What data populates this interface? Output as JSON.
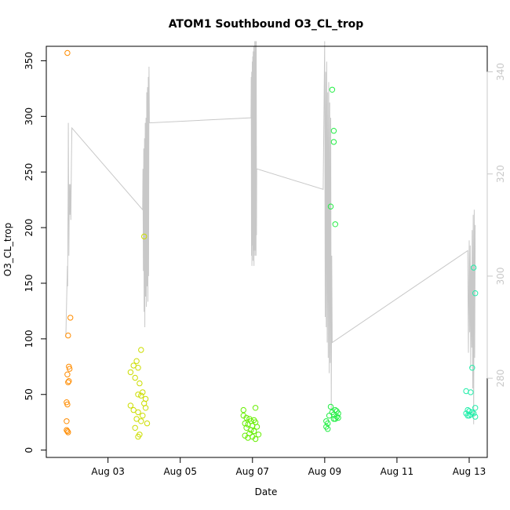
{
  "chart_data": {
    "type": "scatter",
    "title": "ATOM1 Southbound O3_CL_trop",
    "xlabel": "Date",
    "ylabel": "O3_CL_trop",
    "xlim": [
      "2016-08-01T07:00",
      "2016-08-13T12:00"
    ],
    "ylim": [
      -6.6,
      363
    ],
    "y2lim": [
      264.5,
      345
    ],
    "x_ticks": [
      {
        "date": "2016-08-03",
        "label": "Aug 03"
      },
      {
        "date": "2016-08-05",
        "label": "Aug 05"
      },
      {
        "date": "2016-08-07",
        "label": "Aug 07"
      },
      {
        "date": "2016-08-09",
        "label": "Aug 09"
      },
      {
        "date": "2016-08-11",
        "label": "Aug 11"
      },
      {
        "date": "2016-08-13",
        "label": "Aug 13"
      }
    ],
    "y_ticks": [
      0,
      50,
      100,
      150,
      200,
      250,
      300,
      350
    ],
    "y2_ticks": [
      280,
      300,
      320,
      340
    ],
    "series": [
      {
        "color": "#ff8c00",
        "points": [
          [
            "2016-08-01T21:00",
            357
          ],
          [
            "2016-08-01T23:00",
            119
          ],
          [
            "2016-08-01T21:30",
            103
          ],
          [
            "2016-08-01T22:00",
            75
          ],
          [
            "2016-08-01T22:30",
            73
          ],
          [
            "2016-08-01T21:00",
            68
          ],
          [
            "2016-08-01T22:00",
            62
          ],
          [
            "2016-08-01T21:30",
            61
          ],
          [
            "2016-08-01T20:30",
            43
          ],
          [
            "2016-08-01T21:00",
            41
          ],
          [
            "2016-08-01T20:30",
            26
          ],
          [
            "2016-08-01T20:30",
            18
          ],
          [
            "2016-08-01T21:00",
            17
          ],
          [
            "2016-08-01T21:30",
            16
          ]
        ]
      },
      {
        "color": "#ccdd00",
        "points": [
          [
            "2016-08-04T00:00",
            192
          ],
          [
            "2016-08-03T22:00",
            90
          ],
          [
            "2016-08-03T19:00",
            80
          ],
          [
            "2016-08-03T17:00",
            76
          ],
          [
            "2016-08-03T20:00",
            74
          ],
          [
            "2016-08-03T15:00",
            70
          ],
          [
            "2016-08-03T18:00",
            65
          ],
          [
            "2016-08-03T21:00",
            60
          ],
          [
            "2016-08-03T23:00",
            52
          ],
          [
            "2016-08-03T20:00",
            50
          ],
          [
            "2016-08-03T22:00",
            49
          ],
          [
            "2016-08-04T01:00",
            46
          ],
          [
            "2016-08-04T00:00",
            42
          ],
          [
            "2016-08-03T15:00",
            40
          ],
          [
            "2016-08-04T01:00",
            38
          ],
          [
            "2016-08-03T17:00",
            36
          ],
          [
            "2016-08-03T20:00",
            34
          ],
          [
            "2016-08-03T23:00",
            31
          ],
          [
            "2016-08-03T19:00",
            28
          ],
          [
            "2016-08-03T22:00",
            26
          ],
          [
            "2016-08-04T02:00",
            24
          ],
          [
            "2016-08-03T18:00",
            20
          ],
          [
            "2016-08-03T21:00",
            14
          ],
          [
            "2016-08-03T20:00",
            12
          ]
        ]
      },
      {
        "color": "#66ee00",
        "points": [
          [
            "2016-08-06T18:00",
            36
          ],
          [
            "2016-08-07T02:00",
            38
          ],
          [
            "2016-08-06T18:00",
            31
          ],
          [
            "2016-08-06T20:00",
            29
          ],
          [
            "2016-08-06T22:00",
            28
          ],
          [
            "2016-08-07T01:00",
            27
          ],
          [
            "2016-08-06T23:00",
            26
          ],
          [
            "2016-08-07T02:00",
            25
          ],
          [
            "2016-08-06T19:00",
            24
          ],
          [
            "2016-08-06T21:00",
            23
          ],
          [
            "2016-08-07T00:00",
            22
          ],
          [
            "2016-08-07T03:00",
            21
          ],
          [
            "2016-08-06T20:00",
            20
          ],
          [
            "2016-08-06T23:00",
            18
          ],
          [
            "2016-08-07T01:00",
            17
          ],
          [
            "2016-08-06T22:00",
            15
          ],
          [
            "2016-08-07T04:00",
            14
          ],
          [
            "2016-08-06T19:00",
            13
          ],
          [
            "2016-08-07T00:00",
            12
          ],
          [
            "2016-08-06T21:00",
            11
          ],
          [
            "2016-08-07T02:00",
            10
          ]
        ]
      },
      {
        "color": "#22ee44",
        "points": [
          [
            "2016-08-09T05:00",
            324
          ],
          [
            "2016-08-09T06:00",
            287
          ],
          [
            "2016-08-09T06:00",
            277
          ],
          [
            "2016-08-09T04:00",
            219
          ],
          [
            "2016-08-09T07:00",
            203
          ],
          [
            "2016-08-09T04:00",
            39
          ],
          [
            "2016-08-09T07:00",
            36
          ],
          [
            "2016-08-09T08:00",
            35
          ],
          [
            "2016-08-09T05:00",
            34
          ],
          [
            "2016-08-09T09:00",
            33
          ],
          [
            "2016-08-09T06:00",
            32
          ],
          [
            "2016-08-09T03:00",
            31
          ],
          [
            "2016-08-09T08:00",
            30
          ],
          [
            "2016-08-09T09:00",
            29
          ],
          [
            "2016-08-09T06:00",
            28
          ],
          [
            "2016-08-09T07:00",
            28
          ],
          [
            "2016-08-09T01:00",
            26
          ],
          [
            "2016-08-09T02:00",
            24
          ],
          [
            "2016-08-09T01:00",
            21
          ],
          [
            "2016-08-09T02:00",
            19
          ]
        ]
      },
      {
        "color": "#22eeaa",
        "points": [
          [
            "2016-08-13T03:00",
            164
          ],
          [
            "2016-08-13T04:00",
            141
          ],
          [
            "2016-08-13T02:00",
            74
          ],
          [
            "2016-08-12T22:00",
            53
          ],
          [
            "2016-08-13T01:00",
            52
          ],
          [
            "2016-08-13T04:00",
            38
          ],
          [
            "2016-08-12T23:00",
            36
          ],
          [
            "2016-08-13T00:00",
            35
          ],
          [
            "2016-08-13T02:00",
            34
          ],
          [
            "2016-08-12T22:00",
            33
          ],
          [
            "2016-08-13T03:00",
            33
          ],
          [
            "2016-08-13T01:00",
            32
          ],
          [
            "2016-08-12T23:00",
            31
          ],
          [
            "2016-08-13T00:00",
            31
          ],
          [
            "2016-08-13T04:00",
            30
          ]
        ]
      }
    ],
    "secondary_line": {
      "color": "#c8c8c8",
      "axis": "right",
      "points": [
        [
          "2016-08-01T20:00",
          288
        ],
        [
          "2016-08-01T20:30",
          295
        ],
        [
          "2016-08-01T21:00",
          302
        ],
        [
          "2016-08-01T21:10",
          298
        ],
        [
          "2016-08-01T21:20",
          308
        ],
        [
          "2016-08-01T21:30",
          316
        ],
        [
          "2016-08-01T21:40",
          330
        ],
        [
          "2016-08-01T21:50",
          315
        ],
        [
          "2016-08-01T22:00",
          304
        ],
        [
          "2016-08-01T22:20",
          318
        ],
        [
          "2016-08-01T22:40",
          312
        ],
        [
          "2016-08-01T23:00",
          318
        ],
        [
          "2016-08-01T23:20",
          311
        ],
        [
          "2016-08-01T23:40",
          322
        ],
        [
          "2016-08-02T00:00",
          329
        ],
        [
          "2016-08-03T23:00",
          313
        ],
        [
          "2016-08-03T23:15",
          321
        ],
        [
          "2016-08-03T23:30",
          301
        ],
        [
          "2016-08-03T23:45",
          325
        ],
        [
          "2016-08-04T00:00",
          293
        ],
        [
          "2016-08-04T00:15",
          327
        ],
        [
          "2016-08-04T00:30",
          290
        ],
        [
          "2016-08-04T00:45",
          330
        ],
        [
          "2016-08-04T01:00",
          296
        ],
        [
          "2016-08-04T01:15",
          331
        ],
        [
          "2016-08-04T01:30",
          294
        ],
        [
          "2016-08-04T01:45",
          336
        ],
        [
          "2016-08-04T02:00",
          298
        ],
        [
          "2016-08-04T02:15",
          337
        ],
        [
          "2016-08-04T02:30",
          295
        ],
        [
          "2016-08-04T02:45",
          339
        ],
        [
          "2016-08-04T03:00",
          300
        ],
        [
          "2016-08-04T03:15",
          341
        ],
        [
          "2016-08-04T03:30",
          330
        ],
        [
          "2016-08-06T23:00",
          331
        ],
        [
          "2016-08-06T23:10",
          339
        ],
        [
          "2016-08-06T23:20",
          304
        ],
        [
          "2016-08-06T23:30",
          340
        ],
        [
          "2016-08-06T23:40",
          302
        ],
        [
          "2016-08-06T23:50",
          342
        ],
        [
          "2016-08-07T00:00",
          306
        ],
        [
          "2016-08-07T00:10",
          343
        ],
        [
          "2016-08-07T00:20",
          303
        ],
        [
          "2016-08-07T00:30",
          344
        ],
        [
          "2016-08-07T00:40",
          305
        ],
        [
          "2016-08-07T00:50",
          345
        ],
        [
          "2016-08-07T01:00",
          302
        ],
        [
          "2016-08-07T01:10",
          344
        ],
        [
          "2016-08-07T01:20",
          305
        ],
        [
          "2016-08-07T01:30",
          346
        ],
        [
          "2016-08-07T01:40",
          304
        ],
        [
          "2016-08-07T01:50",
          345
        ],
        [
          "2016-08-07T02:00",
          305
        ],
        [
          "2016-08-07T02:10",
          346
        ],
        [
          "2016-08-07T02:20",
          304
        ],
        [
          "2016-08-07T02:30",
          346
        ],
        [
          "2016-08-07T02:40",
          308
        ],
        [
          "2016-08-07T02:50",
          321
        ],
        [
          "2016-08-08T23:00",
          317
        ],
        [
          "2016-08-09T00:00",
          346
        ],
        [
          "2016-08-09T00:20",
          292
        ],
        [
          "2016-08-09T00:40",
          340
        ],
        [
          "2016-08-09T01:00",
          290
        ],
        [
          "2016-08-09T01:20",
          342
        ],
        [
          "2016-08-09T01:40",
          287
        ],
        [
          "2016-08-09T02:00",
          336
        ],
        [
          "2016-08-09T02:20",
          284
        ],
        [
          "2016-08-09T02:40",
          338
        ],
        [
          "2016-08-09T03:00",
          281
        ],
        [
          "2016-08-09T03:20",
          334
        ],
        [
          "2016-08-09T03:40",
          283
        ],
        [
          "2016-08-09T04:00",
          331
        ],
        [
          "2016-08-09T04:20",
          274
        ],
        [
          "2016-08-09T04:40",
          304
        ],
        [
          "2016-08-09T05:00",
          287
        ],
        [
          "2016-08-12T23:00",
          305
        ],
        [
          "2016-08-12T23:30",
          285
        ],
        [
          "2016-08-13T00:00",
          307
        ],
        [
          "2016-08-13T00:20",
          289
        ],
        [
          "2016-08-13T00:40",
          306
        ],
        [
          "2016-08-13T01:00",
          282
        ],
        [
          "2016-08-13T01:20",
          302
        ],
        [
          "2016-08-13T01:40",
          286
        ],
        [
          "2016-08-13T02:00",
          309
        ],
        [
          "2016-08-13T02:20",
          278
        ],
        [
          "2016-08-13T02:40",
          312
        ],
        [
          "2016-08-13T03:00",
          271
        ],
        [
          "2016-08-13T03:20",
          313
        ],
        [
          "2016-08-13T03:40",
          284
        ],
        [
          "2016-08-13T04:00",
          310
        ]
      ]
    }
  }
}
